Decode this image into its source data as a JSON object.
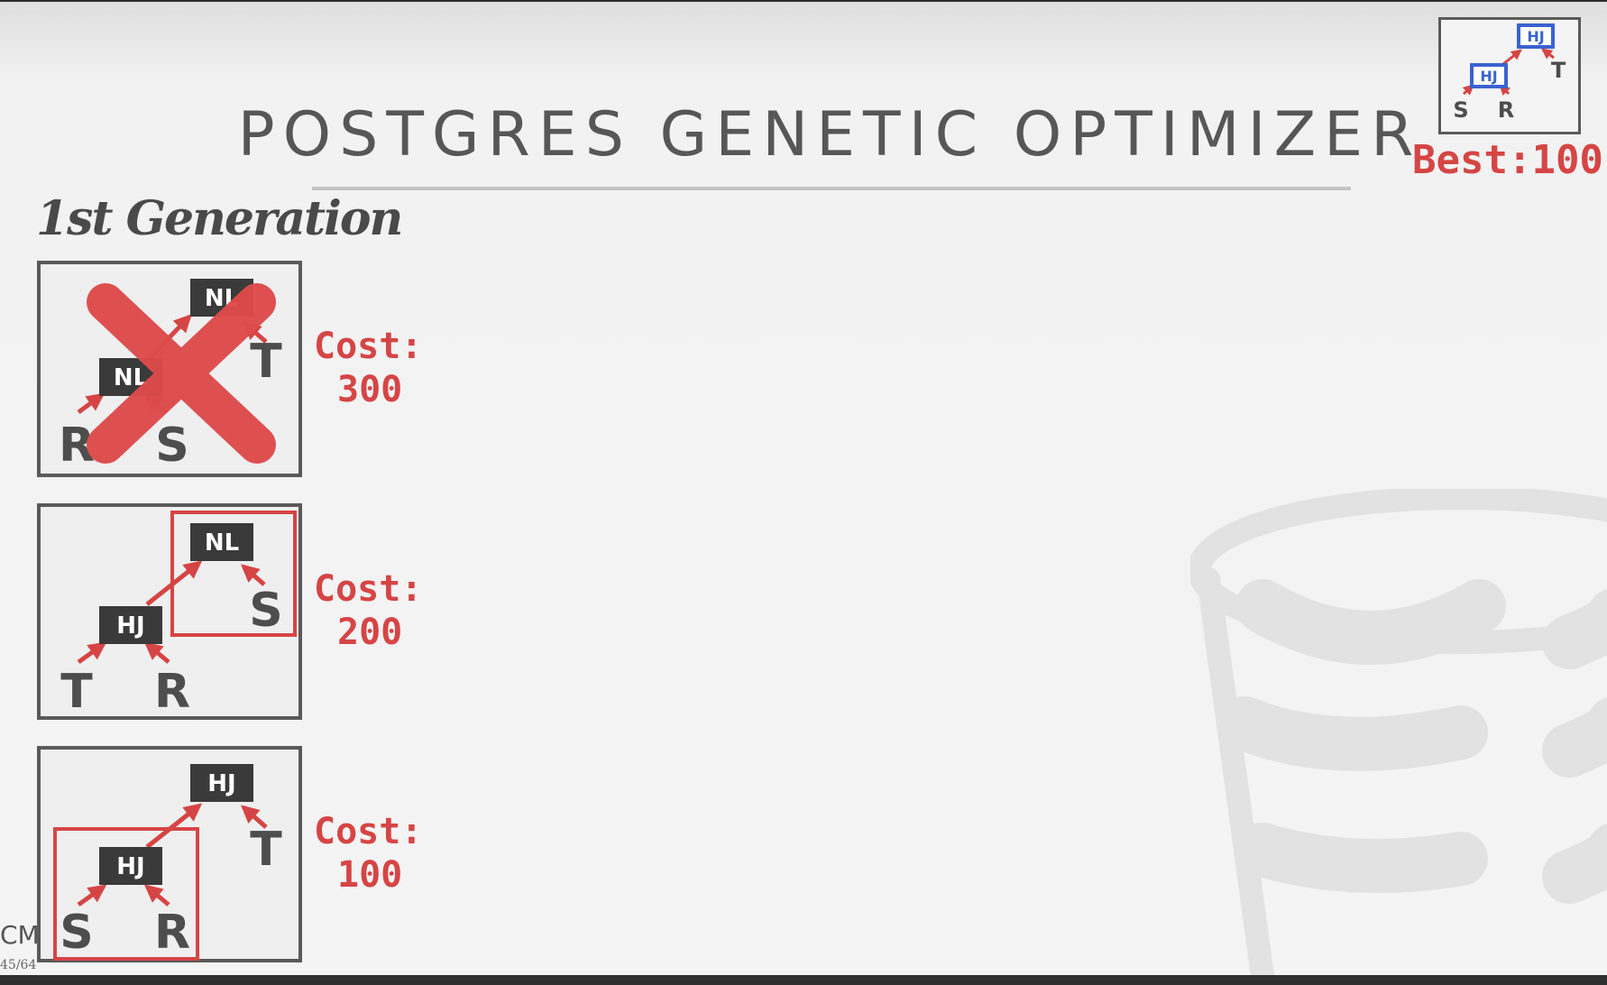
{
  "slide": {
    "title": "POSTGRES GENETIC OPTIMIZER",
    "subtitle": "1st Generation",
    "best": {
      "text": "Best:100",
      "tree": {
        "root": "HJ",
        "child": "HJ",
        "leaves": [
          "S",
          "R",
          "T"
        ]
      }
    },
    "plans": [
      {
        "root": "NL",
        "child": "NL",
        "leaves": [
          "R",
          "S",
          "T"
        ],
        "cost_label": "Cost:",
        "cost_value": "300",
        "crossed_out": true
      },
      {
        "root": "NL",
        "child": "HJ",
        "leaves": [
          "T",
          "R",
          "S"
        ],
        "cost_label": "Cost:",
        "cost_value": "200",
        "crossed_out": false
      },
      {
        "root": "HJ",
        "child": "HJ",
        "leaves": [
          "S",
          "R",
          "T"
        ],
        "cost_label": "Cost:",
        "cost_value": "100",
        "crossed_out": false
      }
    ],
    "footer": {
      "logo_text": "CM",
      "page_text": "45/64"
    },
    "colors": {
      "accent_red": "#d64545",
      "node_dark": "#3a3a3a",
      "best_blue": "#3a63d0",
      "text_gray": "#575757"
    }
  }
}
